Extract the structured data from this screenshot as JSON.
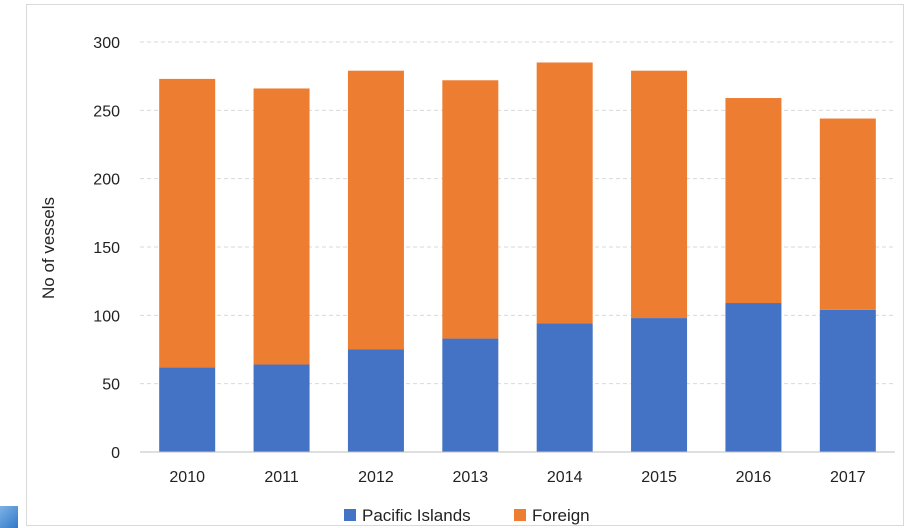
{
  "chart_data": {
    "type": "bar",
    "stacked": true,
    "categories": [
      "2010",
      "2011",
      "2012",
      "2013",
      "2014",
      "2015",
      "2016",
      "2017"
    ],
    "series": [
      {
        "name": "Pacific Islands",
        "color": "#4472c4",
        "values": [
          62,
          64,
          75,
          83,
          94,
          98,
          109,
          104
        ]
      },
      {
        "name": "Foreign",
        "color": "#ed7d31",
        "values": [
          211,
          202,
          204,
          189,
          191,
          181,
          150,
          140
        ]
      }
    ],
    "title": "",
    "xlabel": "",
    "ylabel": "No of vessels",
    "ylim": [
      0,
      300
    ],
    "yticks": [
      "0",
      "50",
      "100",
      "150",
      "200",
      "250",
      "300"
    ],
    "grid": true,
    "legend": "bottom"
  }
}
